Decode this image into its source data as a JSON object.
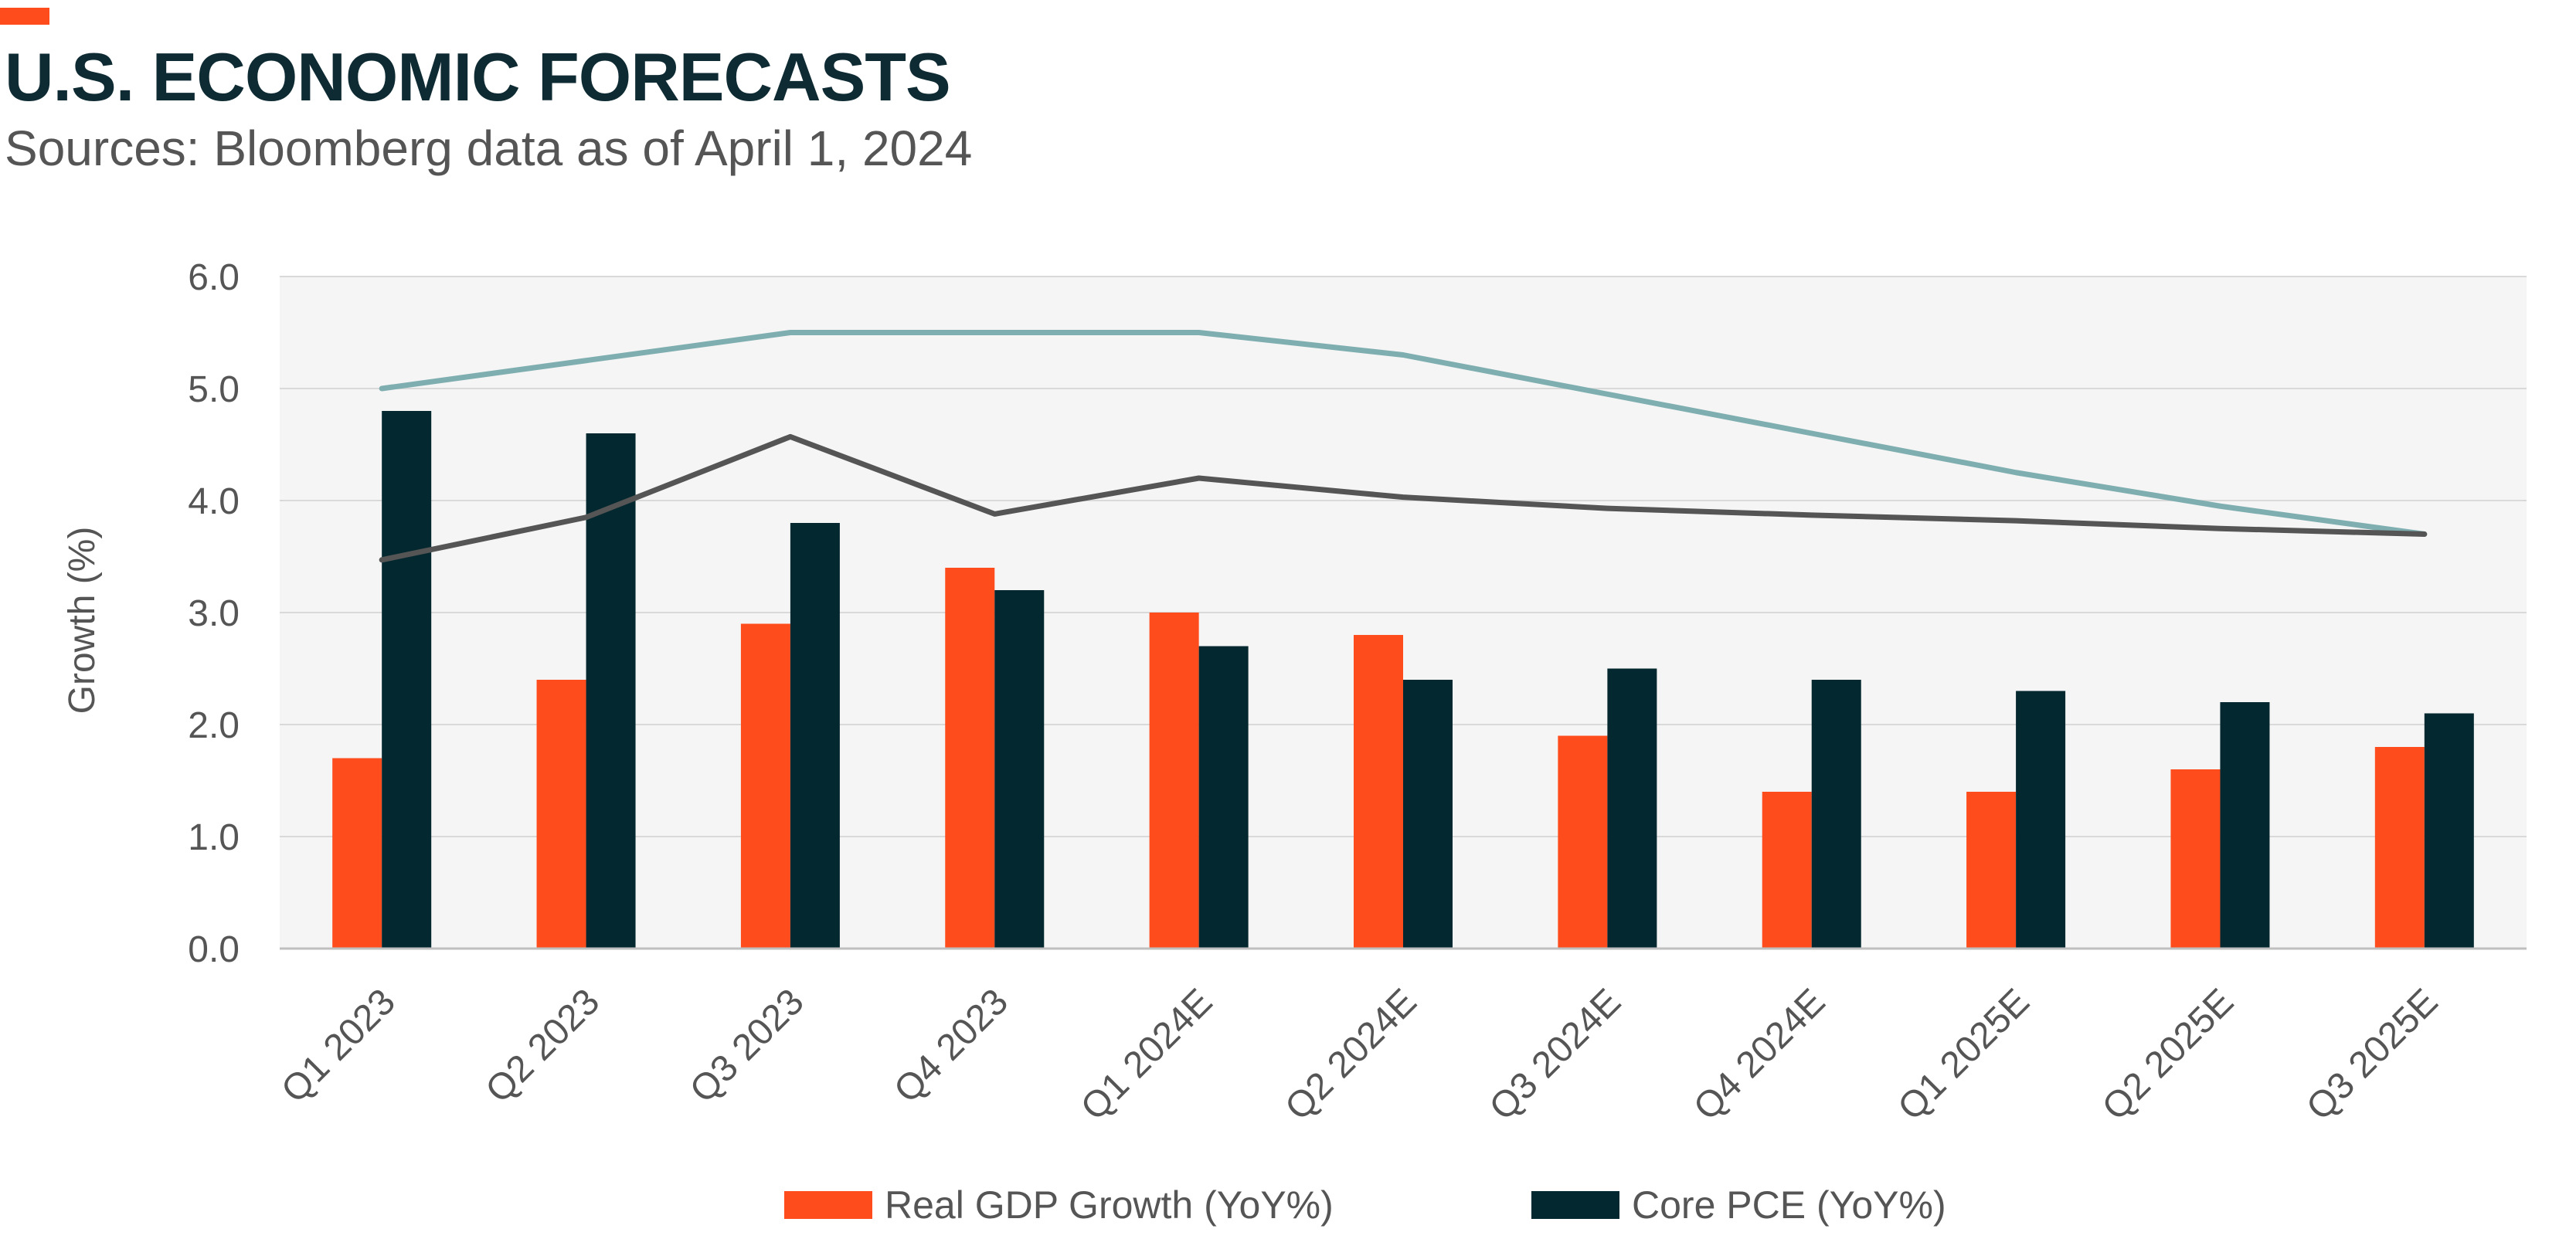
{
  "header": {
    "title": "U.S. ECONOMIC FORECASTS",
    "subtitle": "Sources: Bloomberg data as of April 1, 2024"
  },
  "colors": {
    "accent": "#ff4c1c",
    "gdp_bar": "#ff4c1c",
    "pce_bar": "#04282f",
    "line_light": "#7faeb0",
    "line_dark": "#555555",
    "plot_bg": "#f5f5f5",
    "grid": "#d9d9d9"
  },
  "chart_data": {
    "type": "bar",
    "categories": [
      "Q1 2023",
      "Q2 2023",
      "Q3 2023",
      "Q4 2023",
      "Q1 2024E",
      "Q2 2024E",
      "Q3 2024E",
      "Q4 2024E",
      "Q1 2025E",
      "Q2 2025E",
      "Q3 2025E"
    ],
    "ylabel": "Growth (%)",
    "ylim": [
      0,
      6
    ],
    "yticks": [
      "0.0",
      "1.0",
      "2.0",
      "3.0",
      "4.0",
      "5.0",
      "6.0"
    ],
    "grid": true,
    "legend_position": "bottom",
    "series": [
      {
        "name": "Real GDP Growth (YoY%)",
        "kind": "bar",
        "values": [
          1.7,
          2.4,
          2.9,
          3.4,
          3.0,
          2.8,
          1.9,
          1.4,
          1.4,
          1.6,
          1.8
        ]
      },
      {
        "name": "Core PCE (YoY%)",
        "kind": "bar",
        "values": [
          4.8,
          4.6,
          3.8,
          3.2,
          2.7,
          2.4,
          2.5,
          2.4,
          2.3,
          2.2,
          2.1
        ]
      },
      {
        "kind": "line",
        "values": [
          5.0,
          5.25,
          5.5,
          5.5,
          5.5,
          5.3,
          4.95,
          4.6,
          4.25,
          3.95,
          3.7
        ]
      },
      {
        "kind": "line",
        "values": [
          3.47,
          3.85,
          4.57,
          3.88,
          4.2,
          4.03,
          3.93,
          3.87,
          3.82,
          3.75,
          3.7
        ]
      }
    ]
  }
}
